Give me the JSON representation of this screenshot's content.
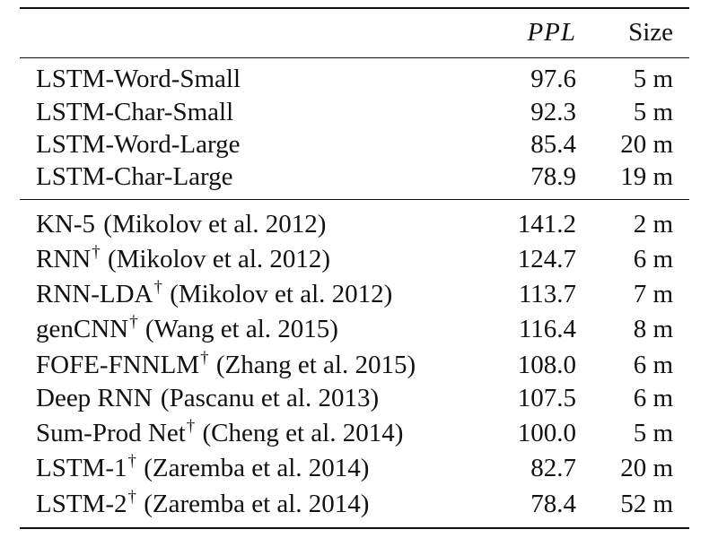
{
  "table": {
    "header": {
      "ppl_label": "PPL",
      "size_label": "Size"
    },
    "group1": [
      {
        "name": "LSTM-Word-Small",
        "ppl": "97.6",
        "size": "5 m"
      },
      {
        "name": "LSTM-Char-Small",
        "ppl": "92.3",
        "size": "5 m"
      },
      {
        "name": "LSTM-Word-Large",
        "ppl": "85.4",
        "size": "20 m"
      },
      {
        "name": "LSTM-Char-Large",
        "ppl": "78.9",
        "size": "19 m"
      }
    ],
    "group2": [
      {
        "model": "KN-5",
        "dagger": "",
        "cite": " (Mikolov et al. 2012)",
        "ppl": "141.2",
        "size": "2 m"
      },
      {
        "model": "RNN",
        "dagger": "†",
        "cite": " (Mikolov et al. 2012)",
        "ppl": "124.7",
        "size": "6 m"
      },
      {
        "model": "RNN-LDA",
        "dagger": "†",
        "cite": " (Mikolov et al. 2012)",
        "ppl": "113.7",
        "size": "7 m"
      },
      {
        "model": "genCNN",
        "dagger": "†",
        "cite": " (Wang et al. 2015)",
        "ppl": "116.4",
        "size": "8 m"
      },
      {
        "model": "FOFE-FNNLM",
        "dagger": "†",
        "cite": " (Zhang et al. 2015)",
        "ppl": "108.0",
        "size": "6 m"
      },
      {
        "model": "Deep RNN",
        "dagger": "",
        "cite": " (Pascanu et al. 2013)",
        "ppl": "107.5",
        "size": "6 m"
      },
      {
        "model": "Sum-Prod Net",
        "dagger": "†",
        "cite": " (Cheng et al. 2014)",
        "ppl": "100.0",
        "size": "5 m"
      },
      {
        "model": "LSTM-1",
        "dagger": "†",
        "cite": " (Zaremba et al. 2014)",
        "ppl": "82.7",
        "size": "20 m"
      },
      {
        "model": "LSTM-2",
        "dagger": "†",
        "cite": " (Zaremba et al. 2014)",
        "ppl": "78.4",
        "size": "52 m"
      }
    ]
  }
}
